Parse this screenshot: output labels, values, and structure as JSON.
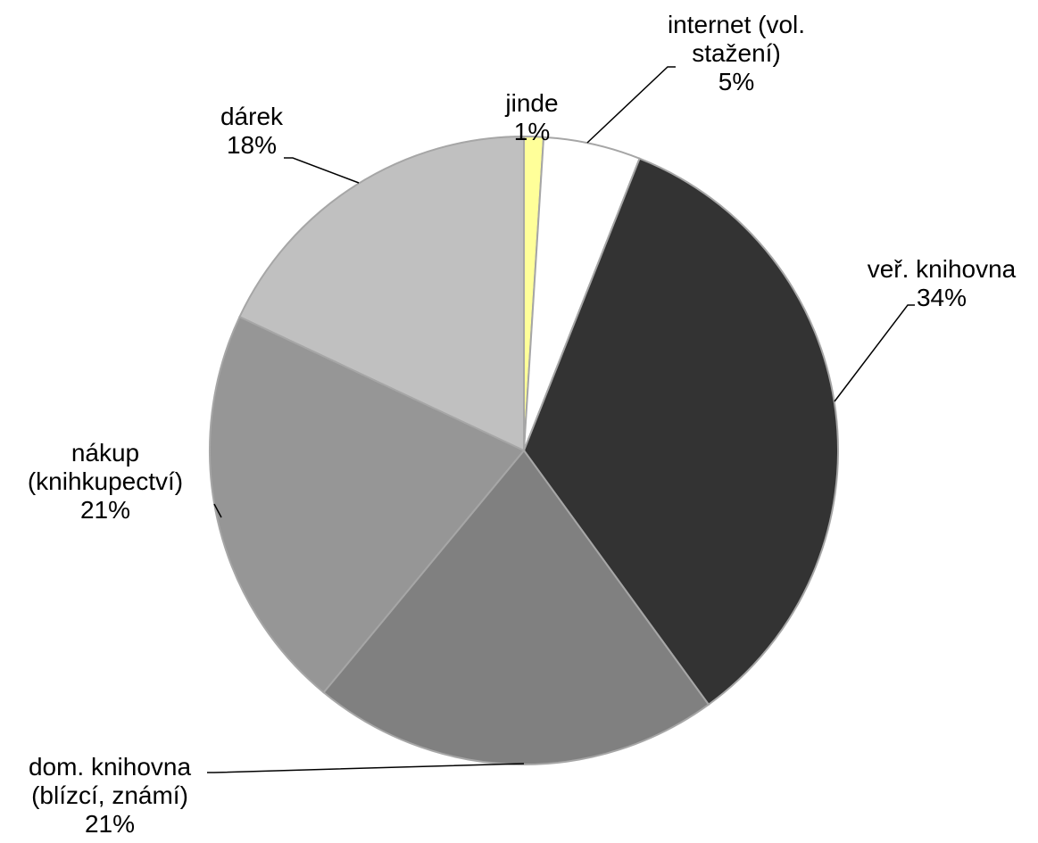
{
  "chart_data": {
    "type": "pie",
    "categories": [
      "jinde",
      "internet (vol. stažení)",
      "veř. knihovna",
      "dom. knihovna (blízcí, známí)",
      "nákup (knihkupectví)",
      "dárek"
    ],
    "values": [
      1,
      5,
      34,
      21,
      21,
      18
    ],
    "value_labels": [
      "1%",
      "5%",
      "34%",
      "21%",
      "21%",
      "18%"
    ],
    "colors": [
      "#ffff99",
      "#ffffff",
      "#333333",
      "#808080",
      "#969696",
      "#c0c0c0"
    ]
  }
}
